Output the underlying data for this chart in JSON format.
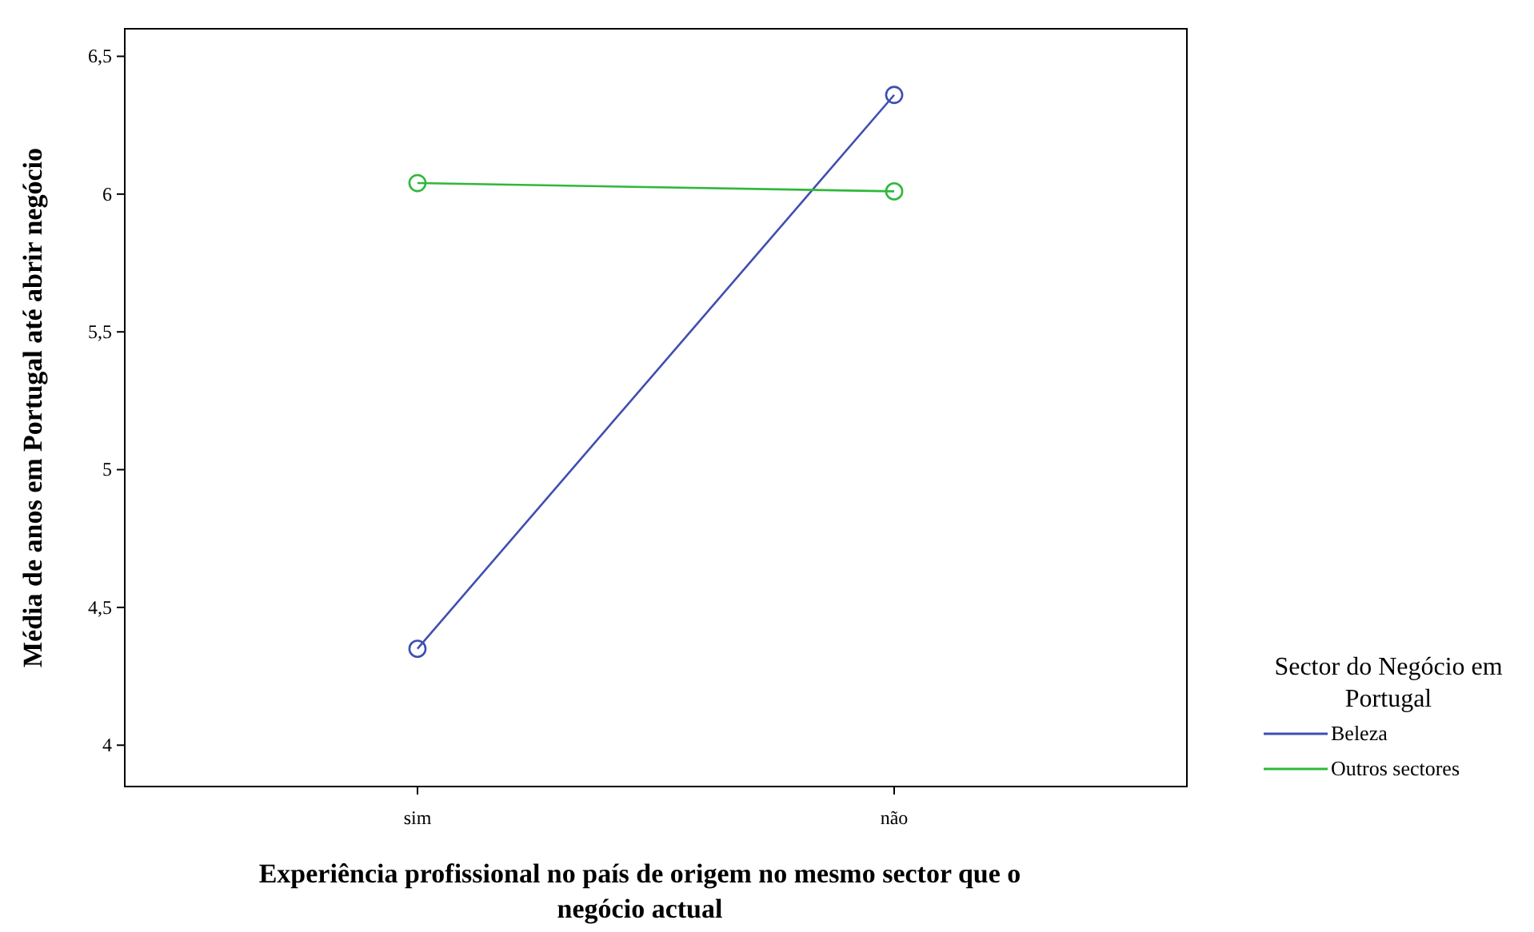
{
  "chart_data": {
    "type": "line",
    "xlabel": "Experiência profissional no país de origem no mesmo sector que o negócio actual",
    "ylabel": "Média de anos em Portugal até abrir negócio",
    "legend_title": "Sector do Negócio em Portugal",
    "categories": [
      "sim",
      "não"
    ],
    "series": [
      {
        "name": "Beleza",
        "color": "#3f4fb0",
        "values": [
          4.35,
          6.36
        ]
      },
      {
        "name": "Outros sectores",
        "color": "#2fb83a",
        "values": [
          6.04,
          6.01
        ]
      }
    ],
    "ylim": [
      3.85,
      6.6
    ],
    "yticks": [
      {
        "value": 4,
        "label": "4"
      },
      {
        "value": 4.5,
        "label": "4,5"
      },
      {
        "value": 5,
        "label": "5"
      },
      {
        "value": 5.5,
        "label": "5,5"
      },
      {
        "value": 6,
        "label": "6"
      },
      {
        "value": 6.5,
        "label": "6,5"
      }
    ],
    "marker": "circle",
    "legend": "right",
    "grid": false
  }
}
